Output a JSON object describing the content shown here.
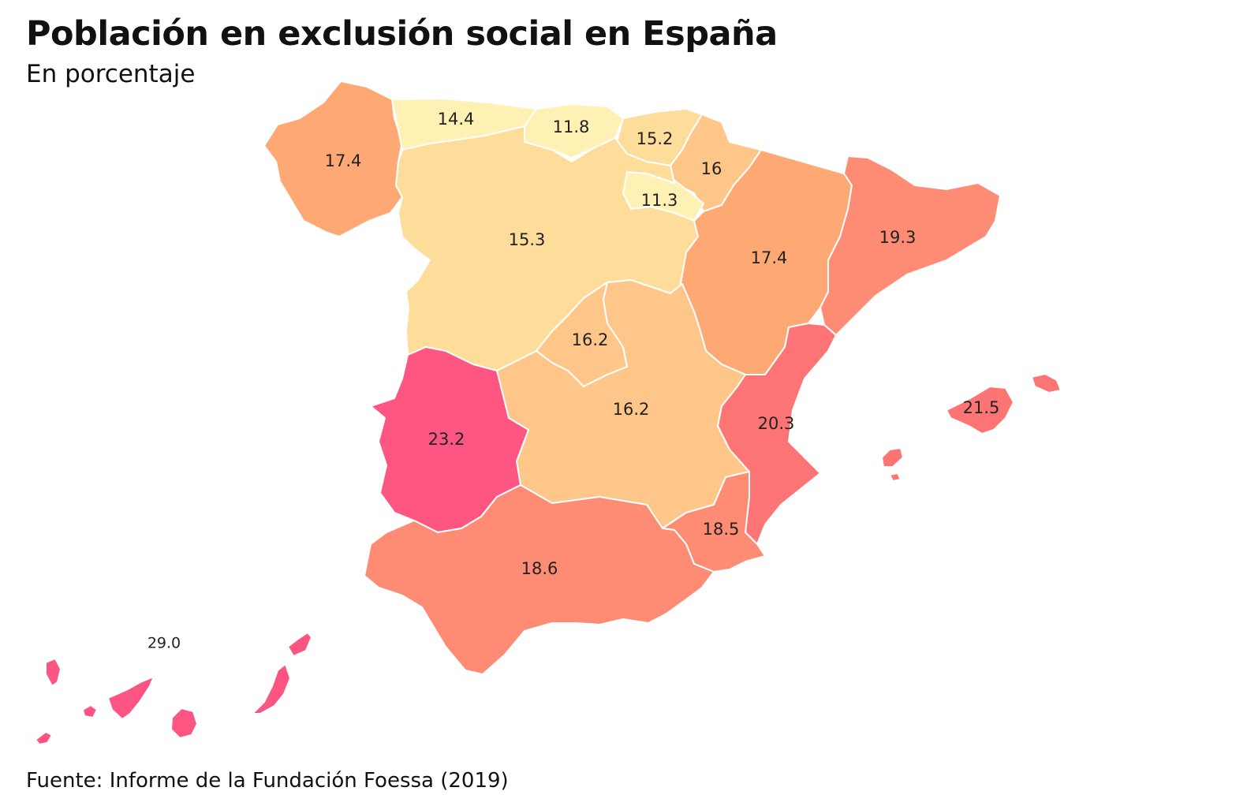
{
  "title": "Población en exclusión social en España",
  "subtitle": "En porcentaje",
  "source": "Fuente: Informe de la Fundación Foessa (2019)",
  "colors": {
    "lightest": "#fff1b3",
    "light": "#fedc9a",
    "light_mid": "#fec689",
    "mid": "#fea873",
    "mid_high": "#fe8b73",
    "high": "#fd7474",
    "highest": "#fd5683",
    "islands": "#fc5581"
  },
  "regions": [
    {
      "id": "galicia",
      "value": "17.4",
      "color_key": "mid"
    },
    {
      "id": "asturias",
      "value": "14.4",
      "color_key": "lightest"
    },
    {
      "id": "cantabria",
      "value": "11.8",
      "color_key": "lightest"
    },
    {
      "id": "pais-vasco",
      "value": "15.2",
      "color_key": "light"
    },
    {
      "id": "navarra",
      "value": "16",
      "color_key": "light_mid"
    },
    {
      "id": "la-rioja",
      "value": "11.3",
      "color_key": "lightest"
    },
    {
      "id": "castilla-leon",
      "value": "15.3",
      "color_key": "light"
    },
    {
      "id": "aragon",
      "value": "17.4",
      "color_key": "mid"
    },
    {
      "id": "cataluna",
      "value": "19.3",
      "color_key": "mid_high"
    },
    {
      "id": "madrid",
      "value": "16.2",
      "color_key": "light_mid"
    },
    {
      "id": "castilla-la-mancha",
      "value": "16.2",
      "color_key": "light_mid"
    },
    {
      "id": "extremadura",
      "value": "23.2",
      "color_key": "highest"
    },
    {
      "id": "valencia",
      "value": "20.3",
      "color_key": "high"
    },
    {
      "id": "murcia",
      "value": "18.5",
      "color_key": "mid_high"
    },
    {
      "id": "andalucia",
      "value": "18.6",
      "color_key": "mid_high"
    },
    {
      "id": "baleares",
      "value": "21.5",
      "color_key": "high"
    },
    {
      "id": "canarias",
      "value": "29.0",
      "color_key": "islands"
    }
  ]
}
